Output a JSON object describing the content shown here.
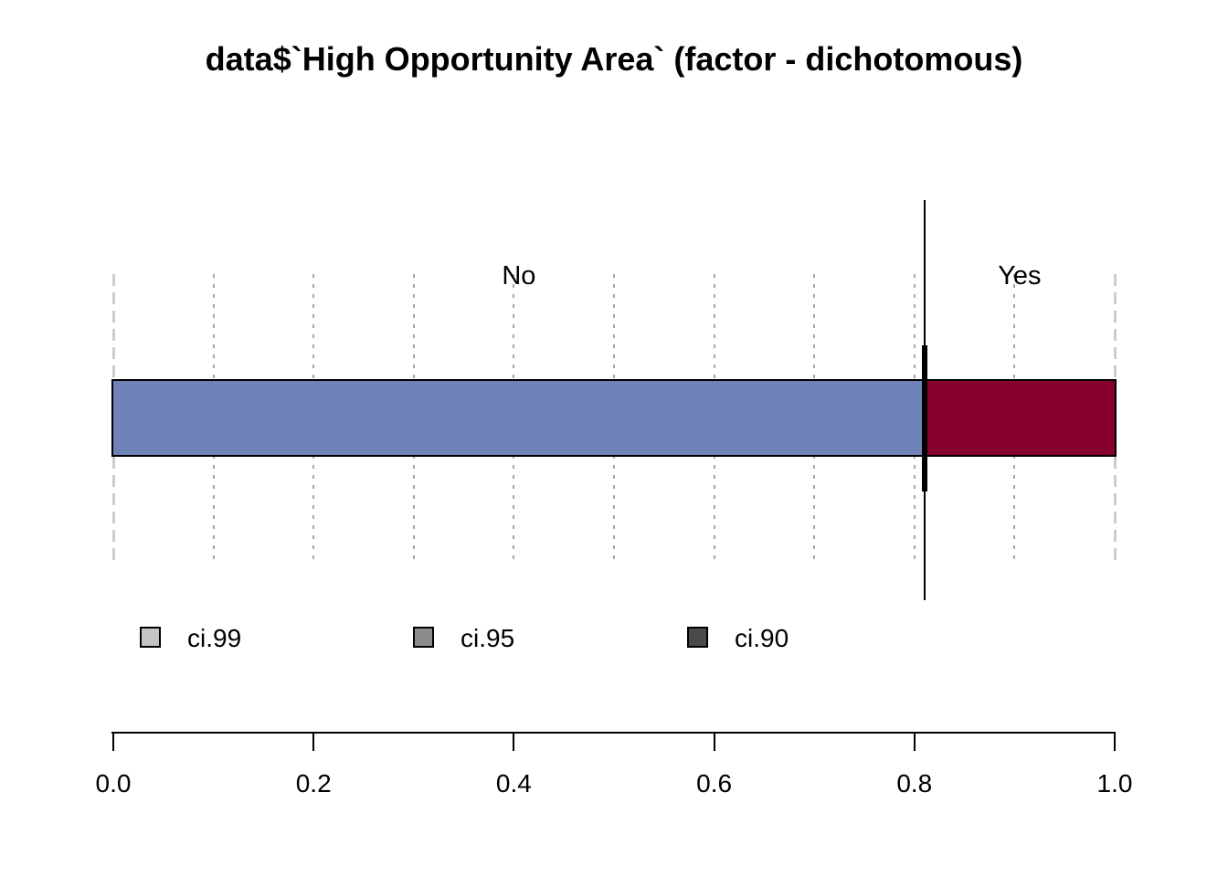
{
  "title": "data$`High Opportunity Area` (factor - dichotomous)",
  "chart_data": {
    "type": "bar",
    "orientation": "horizontal-stacked-proportion",
    "title": "data$`High Opportunity Area` (factor - dichotomous)",
    "categories": [
      "No",
      "Yes"
    ],
    "values": [
      0.81,
      0.19
    ],
    "colors": [
      "#6F82B8",
      "#860030"
    ],
    "point_estimate": 0.81,
    "xlabel": "",
    "xlim": [
      0,
      1
    ],
    "x_ticks": [
      "0.0",
      "0.2",
      "0.4",
      "0.6",
      "0.8",
      "1.0"
    ],
    "grid": {
      "interval": 0.1,
      "style": "dashed-vertical",
      "edge_style": "longdash",
      "color": "#A6A6A6",
      "edge_color": "#CCCCCC"
    },
    "legend_position": "below-plot",
    "legend": [
      {
        "label": "ci.99",
        "color": "#C4C4C4"
      },
      {
        "label": "ci.95",
        "color": "#8C8C8C"
      },
      {
        "label": "ci.90",
        "color": "#4A4A4A"
      }
    ]
  }
}
